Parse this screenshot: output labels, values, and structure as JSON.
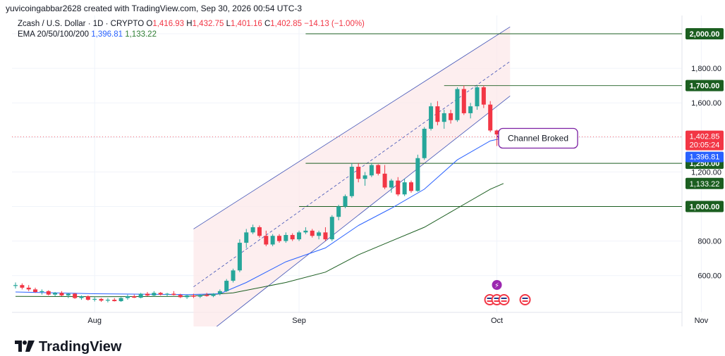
{
  "header": {
    "attribution": "yuvicoingabbar2628 created with TradingView.com, Sep 30, 2026 00:54 UTC-3"
  },
  "legend": {
    "symbol": "Zcash / U.S. Dollar · 1D · CRYPTO",
    "o_label": "O",
    "o_value": "1,416.93",
    "h_label": "H",
    "h_value": "1,432.75",
    "l_label": "L",
    "l_value": "1,401.16",
    "c_label": "C",
    "c_value": "1,402.85",
    "change": "−14.13 (−1.00%)",
    "ema_label": "EMA 20/50/100/200",
    "ema20": "1,396.81",
    "ema50": "1,133.22"
  },
  "footer": {
    "brand": "TradingView"
  },
  "colors": {
    "up": "#26a69a",
    "down": "#f23645",
    "ema20": "#2962ff",
    "ema50": "#1b5e20",
    "channel": "#3f51b5",
    "channel_fill": "#fce8ea",
    "level": "#1b5e20",
    "price_tag": "#f23645"
  },
  "chart_data": {
    "type": "candlestick",
    "title": "Zcash / U.S. Dollar · 1D · CRYPTO",
    "x_ticks": [
      "Aug",
      "Sep",
      "Oct",
      "Nov"
    ],
    "y_ticks": [
      "600.00",
      "800.00",
      "1,000.00",
      "1,200.00",
      "1,400.00",
      "1,600.00",
      "1,800.00",
      "2,000.00"
    ],
    "ylim": [
      500,
      2100
    ],
    "grid": true,
    "horizontal_levels": [
      {
        "value": 2000,
        "label": "2,000.00"
      },
      {
        "value": 1700,
        "label": "1,700.00"
      },
      {
        "value": 1250,
        "label": "1,250.00"
      },
      {
        "value": 1000,
        "label": "1,000.00"
      }
    ],
    "price_tags": [
      {
        "value": 1402.85,
        "label": "1,402.85",
        "sub": "20:05:24",
        "color": "#f23645"
      },
      {
        "value": 1396.81,
        "label": "1,396.81",
        "color": "#2962ff"
      },
      {
        "value": 1133.22,
        "label": "1,133.22",
        "color": "#1b5e20"
      }
    ],
    "annotation": {
      "text": "Channel Broked",
      "date": "2026-09-30",
      "value": 1410
    },
    "channel": {
      "start_date": "2026-08-16",
      "end_date": "2026-10-03",
      "lower_start": 200,
      "lower_end": 1640,
      "upper_start": 870,
      "upper_end": 2040
    },
    "candles": [
      {
        "date": "2026-07-20",
        "o": 540,
        "h": 560,
        "l": 525,
        "c": 545
      },
      {
        "date": "2026-07-21",
        "o": 545,
        "h": 555,
        "l": 520,
        "c": 530
      },
      {
        "date": "2026-07-22",
        "o": 530,
        "h": 545,
        "l": 510,
        "c": 520
      },
      {
        "date": "2026-07-23",
        "o": 520,
        "h": 530,
        "l": 500,
        "c": 505
      },
      {
        "date": "2026-07-24",
        "o": 505,
        "h": 520,
        "l": 490,
        "c": 510
      },
      {
        "date": "2026-07-25",
        "o": 510,
        "h": 515,
        "l": 485,
        "c": 490
      },
      {
        "date": "2026-07-26",
        "o": 490,
        "h": 505,
        "l": 480,
        "c": 500
      },
      {
        "date": "2026-07-27",
        "o": 500,
        "h": 510,
        "l": 480,
        "c": 485
      },
      {
        "date": "2026-07-28",
        "o": 485,
        "h": 500,
        "l": 470,
        "c": 495
      },
      {
        "date": "2026-07-29",
        "o": 495,
        "h": 500,
        "l": 465,
        "c": 470
      },
      {
        "date": "2026-07-30",
        "o": 470,
        "h": 485,
        "l": 460,
        "c": 480
      },
      {
        "date": "2026-07-31",
        "o": 480,
        "h": 485,
        "l": 455,
        "c": 460
      },
      {
        "date": "2026-08-01",
        "o": 460,
        "h": 475,
        "l": 450,
        "c": 465
      },
      {
        "date": "2026-08-02",
        "o": 465,
        "h": 470,
        "l": 448,
        "c": 455
      },
      {
        "date": "2026-08-03",
        "o": 455,
        "h": 470,
        "l": 445,
        "c": 460
      },
      {
        "date": "2026-08-04",
        "o": 460,
        "h": 470,
        "l": 450,
        "c": 452
      },
      {
        "date": "2026-08-05",
        "o": 452,
        "h": 475,
        "l": 448,
        "c": 470
      },
      {
        "date": "2026-08-06",
        "o": 470,
        "h": 490,
        "l": 460,
        "c": 480
      },
      {
        "date": "2026-08-07",
        "o": 480,
        "h": 490,
        "l": 470,
        "c": 472
      },
      {
        "date": "2026-08-08",
        "o": 472,
        "h": 500,
        "l": 468,
        "c": 495
      },
      {
        "date": "2026-08-09",
        "o": 495,
        "h": 505,
        "l": 480,
        "c": 485
      },
      {
        "date": "2026-08-10",
        "o": 485,
        "h": 510,
        "l": 478,
        "c": 500
      },
      {
        "date": "2026-08-11",
        "o": 500,
        "h": 505,
        "l": 485,
        "c": 490
      },
      {
        "date": "2026-08-12",
        "o": 490,
        "h": 500,
        "l": 480,
        "c": 495
      },
      {
        "date": "2026-08-13",
        "o": 495,
        "h": 510,
        "l": 485,
        "c": 488
      },
      {
        "date": "2026-08-14",
        "o": 488,
        "h": 495,
        "l": 470,
        "c": 475
      },
      {
        "date": "2026-08-15",
        "o": 475,
        "h": 490,
        "l": 465,
        "c": 485
      },
      {
        "date": "2026-08-16",
        "o": 485,
        "h": 495,
        "l": 470,
        "c": 478
      },
      {
        "date": "2026-08-17",
        "o": 478,
        "h": 492,
        "l": 470,
        "c": 488
      },
      {
        "date": "2026-08-18",
        "o": 488,
        "h": 500,
        "l": 478,
        "c": 482
      },
      {
        "date": "2026-08-19",
        "o": 482,
        "h": 498,
        "l": 475,
        "c": 495
      },
      {
        "date": "2026-08-20",
        "o": 495,
        "h": 520,
        "l": 485,
        "c": 510
      },
      {
        "date": "2026-08-21",
        "o": 510,
        "h": 580,
        "l": 505,
        "c": 570
      },
      {
        "date": "2026-08-22",
        "o": 570,
        "h": 640,
        "l": 560,
        "c": 630
      },
      {
        "date": "2026-08-23",
        "o": 630,
        "h": 810,
        "l": 620,
        "c": 790
      },
      {
        "date": "2026-08-24",
        "o": 790,
        "h": 870,
        "l": 760,
        "c": 850
      },
      {
        "date": "2026-08-25",
        "o": 850,
        "h": 895,
        "l": 840,
        "c": 880
      },
      {
        "date": "2026-08-26",
        "o": 880,
        "h": 890,
        "l": 820,
        "c": 830
      },
      {
        "date": "2026-08-27",
        "o": 830,
        "h": 860,
        "l": 770,
        "c": 780
      },
      {
        "date": "2026-08-28",
        "o": 780,
        "h": 840,
        "l": 770,
        "c": 830
      },
      {
        "date": "2026-08-29",
        "o": 830,
        "h": 840,
        "l": 790,
        "c": 800
      },
      {
        "date": "2026-08-30",
        "o": 800,
        "h": 850,
        "l": 790,
        "c": 835
      },
      {
        "date": "2026-08-31",
        "o": 835,
        "h": 845,
        "l": 800,
        "c": 810
      },
      {
        "date": "2026-09-01",
        "o": 810,
        "h": 860,
        "l": 800,
        "c": 850
      },
      {
        "date": "2026-09-02",
        "o": 850,
        "h": 880,
        "l": 840,
        "c": 860
      },
      {
        "date": "2026-09-03",
        "o": 860,
        "h": 870,
        "l": 820,
        "c": 830
      },
      {
        "date": "2026-09-04",
        "o": 830,
        "h": 860,
        "l": 810,
        "c": 850
      },
      {
        "date": "2026-09-05",
        "o": 850,
        "h": 880,
        "l": 800,
        "c": 810
      },
      {
        "date": "2026-09-06",
        "o": 810,
        "h": 950,
        "l": 800,
        "c": 940
      },
      {
        "date": "2026-09-07",
        "o": 940,
        "h": 1010,
        "l": 920,
        "c": 1000
      },
      {
        "date": "2026-09-08",
        "o": 1000,
        "h": 1070,
        "l": 990,
        "c": 1060
      },
      {
        "date": "2026-09-09",
        "o": 1060,
        "h": 1250,
        "l": 1050,
        "c": 1230
      },
      {
        "date": "2026-09-10",
        "o": 1230,
        "h": 1250,
        "l": 1140,
        "c": 1160
      },
      {
        "date": "2026-09-11",
        "o": 1160,
        "h": 1200,
        "l": 1120,
        "c": 1180
      },
      {
        "date": "2026-09-12",
        "o": 1180,
        "h": 1250,
        "l": 1170,
        "c": 1240
      },
      {
        "date": "2026-09-13",
        "o": 1240,
        "h": 1245,
        "l": 1180,
        "c": 1190
      },
      {
        "date": "2026-09-14",
        "o": 1190,
        "h": 1240,
        "l": 1100,
        "c": 1110
      },
      {
        "date": "2026-09-15",
        "o": 1110,
        "h": 1160,
        "l": 1080,
        "c": 1150
      },
      {
        "date": "2026-09-16",
        "o": 1150,
        "h": 1170,
        "l": 1060,
        "c": 1070
      },
      {
        "date": "2026-09-17",
        "o": 1070,
        "h": 1160,
        "l": 1060,
        "c": 1140
      },
      {
        "date": "2026-09-18",
        "o": 1140,
        "h": 1150,
        "l": 1080,
        "c": 1090
      },
      {
        "date": "2026-09-19",
        "o": 1090,
        "h": 1300,
        "l": 1085,
        "c": 1280
      },
      {
        "date": "2026-09-20",
        "o": 1280,
        "h": 1460,
        "l": 1270,
        "c": 1450
      },
      {
        "date": "2026-09-21",
        "o": 1450,
        "h": 1600,
        "l": 1440,
        "c": 1580
      },
      {
        "date": "2026-09-22",
        "o": 1580,
        "h": 1610,
        "l": 1470,
        "c": 1490
      },
      {
        "date": "2026-09-23",
        "o": 1490,
        "h": 1560,
        "l": 1450,
        "c": 1540
      },
      {
        "date": "2026-09-24",
        "o": 1540,
        "h": 1560,
        "l": 1480,
        "c": 1500
      },
      {
        "date": "2026-09-25",
        "o": 1500,
        "h": 1690,
        "l": 1490,
        "c": 1680
      },
      {
        "date": "2026-09-26",
        "o": 1680,
        "h": 1700,
        "l": 1530,
        "c": 1540
      },
      {
        "date": "2026-09-27",
        "o": 1540,
        "h": 1600,
        "l": 1510,
        "c": 1580
      },
      {
        "date": "2026-09-28",
        "o": 1580,
        "h": 1700,
        "l": 1560,
        "c": 1690
      },
      {
        "date": "2026-09-29",
        "o": 1690,
        "h": 1700,
        "l": 1570,
        "c": 1590
      },
      {
        "date": "2026-09-30",
        "o": 1590,
        "h": 1610,
        "l": 1430,
        "c": 1440
      },
      {
        "date": "2026-10-01",
        "o": 1440,
        "h": 1445,
        "l": 1350,
        "c": 1417
      },
      {
        "date": "2026-10-02",
        "o": 1416.93,
        "h": 1432.75,
        "l": 1401.16,
        "c": 1402.85
      }
    ],
    "ema20": [
      {
        "date": "2026-07-20",
        "v": 505
      },
      {
        "date": "2026-08-01",
        "v": 495
      },
      {
        "date": "2026-08-15",
        "v": 490
      },
      {
        "date": "2026-08-20",
        "v": 495
      },
      {
        "date": "2026-08-24",
        "v": 560
      },
      {
        "date": "2026-08-30",
        "v": 680
      },
      {
        "date": "2026-09-05",
        "v": 760
      },
      {
        "date": "2026-09-10",
        "v": 890
      },
      {
        "date": "2026-09-15",
        "v": 990
      },
      {
        "date": "2026-09-20",
        "v": 1100
      },
      {
        "date": "2026-09-25",
        "v": 1270
      },
      {
        "date": "2026-09-30",
        "v": 1380
      },
      {
        "date": "2026-10-02",
        "v": 1396.81
      }
    ],
    "ema50": [
      {
        "date": "2026-07-20",
        "v": 480
      },
      {
        "date": "2026-08-01",
        "v": 478
      },
      {
        "date": "2026-08-15",
        "v": 480
      },
      {
        "date": "2026-08-22",
        "v": 500
      },
      {
        "date": "2026-08-30",
        "v": 560
      },
      {
        "date": "2026-09-05",
        "v": 620
      },
      {
        "date": "2026-09-10",
        "v": 720
      },
      {
        "date": "2026-09-15",
        "v": 800
      },
      {
        "date": "2026-09-20",
        "v": 880
      },
      {
        "date": "2026-09-25",
        "v": 990
      },
      {
        "date": "2026-09-30",
        "v": 1100
      },
      {
        "date": "2026-10-02",
        "v": 1133.22
      }
    ]
  }
}
